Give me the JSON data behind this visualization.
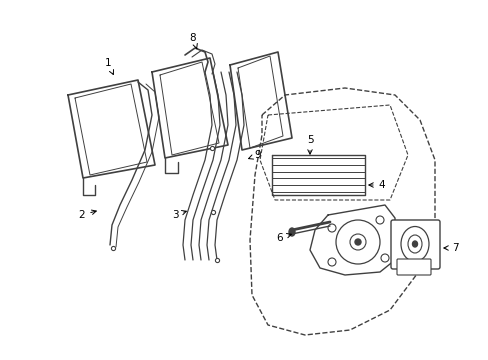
{
  "bg_color": "#ffffff",
  "line_color": "#404040",
  "text_color": "#000000",
  "fig_width": 4.89,
  "fig_height": 3.6,
  "dpi": 100
}
